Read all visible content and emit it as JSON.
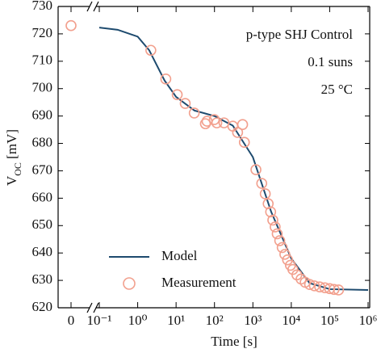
{
  "chart_data": {
    "type": "line",
    "x_label": "Time [s]",
    "y_label": "VOC [mV]",
    "annotations": [
      "p-type SHJ Control",
      "0.1 suns",
      "25 °C"
    ],
    "xscale": "log",
    "xlim": [
      0.1,
      1000000
    ],
    "ylim": [
      620,
      730
    ],
    "xticks": [
      0,
      {
        "value": 0.1,
        "label": "10⁻¹"
      },
      {
        "value": 1,
        "label": "10⁰"
      },
      {
        "value": 10,
        "label": "10¹"
      },
      {
        "value": 100,
        "label": "10²"
      },
      {
        "value": 1000,
        "label": "10³"
      },
      {
        "value": 10000,
        "label": "10⁴"
      },
      {
        "value": 100000,
        "label": "10⁵"
      },
      {
        "value": 1000000,
        "label": "10⁶"
      }
    ],
    "yticks": [
      620,
      630,
      640,
      650,
      660,
      670,
      680,
      690,
      700,
      710,
      720,
      730
    ],
    "legend": "lower left",
    "series": [
      {
        "name": "Model",
        "style": "line",
        "color": "#1d4a6e",
        "x": [
          0.1,
          0.3,
          1,
          2,
          5,
          10,
          30,
          100,
          300,
          1000,
          3000,
          10000,
          30000,
          100000,
          1000000
        ],
        "values": [
          722.3,
          721.5,
          719,
          714,
          703,
          697,
          692,
          690,
          686.5,
          675,
          655,
          638,
          629,
          626.8,
          626.5
        ]
      },
      {
        "name": "Measurement",
        "style": "markers",
        "color": "#f2a08e",
        "x": [
          0,
          2.2,
          5.4,
          10.7,
          17.3,
          29.7,
          58,
          64,
          99,
          115,
          177,
          300,
          400,
          540,
          600,
          1200,
          1700,
          2100,
          2500,
          2900,
          3300,
          3800,
          4300,
          5000,
          5800,
          6800,
          8000,
          9500,
          11000,
          14000,
          18000,
          23000,
          30000,
          40000,
          55000,
          75000,
          100000,
          130000,
          170000
        ],
        "values": [
          723,
          714,
          703.5,
          697.8,
          694.6,
          691.1,
          687.2,
          688.1,
          688.7,
          687.5,
          687.5,
          686.3,
          684,
          686.9,
          680.4,
          670.4,
          665.4,
          661.6,
          658,
          655,
          652,
          649.5,
          647,
          644.5,
          642,
          639.5,
          637.5,
          635.5,
          634,
          632,
          630.5,
          629.3,
          628.5,
          628,
          627.6,
          627.3,
          627,
          626.7,
          626.5
        ]
      }
    ]
  }
}
